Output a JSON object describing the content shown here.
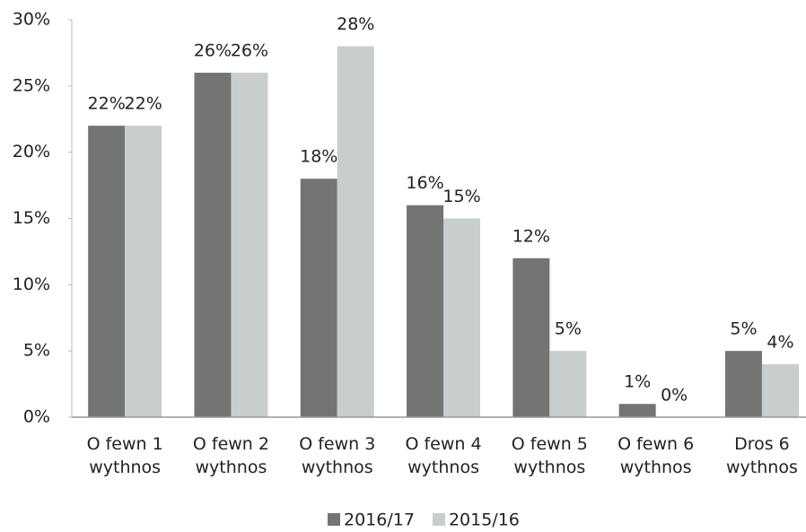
{
  "chart_data": {
    "type": "bar",
    "categories": [
      "O fewn 1 wythnos",
      "O fewn 2 wythnos",
      "O fewn 3 wythnos",
      "O fewn 4 wythnos",
      "O fewn 5 wythnos",
      "O fewn 6 wythnos",
      "Dros 6 wythnos"
    ],
    "series": [
      {
        "name": "2016/17",
        "color": "#727572",
        "values": [
          22,
          26,
          18,
          16,
          12,
          1,
          5
        ],
        "value_labels": [
          "22%",
          "26%",
          "18%",
          "16%",
          "12%",
          "1%",
          "5%"
        ]
      },
      {
        "name": "2015/16",
        "color": "#c8cdcd",
        "values": [
          22,
          26,
          28,
          15,
          5,
          0,
          4
        ],
        "value_labels": [
          "22%",
          "26%",
          "28%",
          "15%",
          "5%",
          "0%",
          "4%"
        ]
      }
    ],
    "ylim": [
      0,
      30
    ],
    "yticks": [
      {
        "value": 0,
        "label": "0%"
      },
      {
        "value": 5,
        "label": "5%"
      },
      {
        "value": 10,
        "label": "10%"
      },
      {
        "value": 15,
        "label": "15%"
      },
      {
        "value": 20,
        "label": "20%"
      },
      {
        "value": 25,
        "label": "25%"
      },
      {
        "value": 30,
        "label": "30%"
      }
    ],
    "grid": false,
    "legend": "bottom"
  }
}
